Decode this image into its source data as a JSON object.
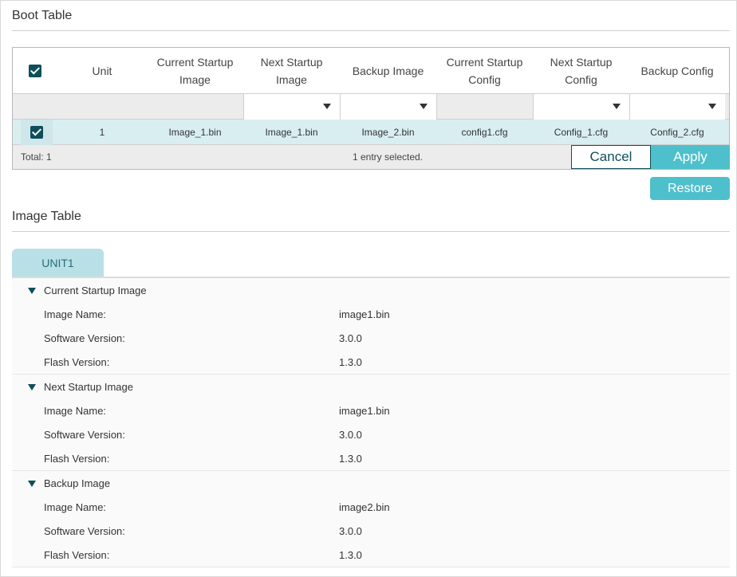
{
  "boot_table": {
    "title": "Boot Table",
    "headers": {
      "unit": "Unit",
      "current_startup_image": "Current Startup Image",
      "next_startup_image": "Next Startup Image",
      "backup_image": "Backup Image",
      "current_startup_config": "Current Startup Config",
      "next_startup_config": "Next Startup Config",
      "backup_config": "Backup Config"
    },
    "rows": [
      {
        "selected": true,
        "unit": "1",
        "current_startup_image": "Image_1.bin",
        "next_startup_image": "Image_1.bin",
        "backup_image": "Image_2.bin",
        "current_startup_config": "config1.cfg",
        "next_startup_config": "Config_1.cfg",
        "backup_config": "Config_2.cfg"
      }
    ],
    "footer": {
      "total": "Total: 1",
      "selection": "1 entry selected.",
      "cancel_label": "Cancel",
      "apply_label": "Apply"
    },
    "restore_label": "Restore"
  },
  "image_table": {
    "title": "Image Table",
    "tabs": [
      {
        "label": "UNIT1",
        "active": true
      }
    ],
    "groups": [
      {
        "title": "Current Startup Image",
        "fields": [
          {
            "label": "Image Name:",
            "value": "image1.bin"
          },
          {
            "label": "Software Version:",
            "value": "3.0.0"
          },
          {
            "label": "Flash Version:",
            "value": "1.3.0"
          }
        ]
      },
      {
        "title": "Next Startup Image",
        "fields": [
          {
            "label": "Image Name:",
            "value": "image1.bin"
          },
          {
            "label": "Software Version:",
            "value": "3.0.0"
          },
          {
            "label": "Flash Version:",
            "value": "1.3.0"
          }
        ]
      },
      {
        "title": "Backup Image",
        "fields": [
          {
            "label": "Image Name:",
            "value": "image2.bin"
          },
          {
            "label": "Software Version:",
            "value": "3.0.0"
          },
          {
            "label": "Flash Version:",
            "value": "1.3.0"
          }
        ]
      }
    ]
  },
  "icons": {
    "checkbox": "checkbox-checked-icon",
    "dropdown": "caret-down-icon",
    "expand": "triangle-down-icon"
  },
  "colors": {
    "accent": "#4ec0cc",
    "dark_teal": "#0d4f5b",
    "selected_row": "#d9eef1",
    "tab_bg": "#b8e0e6"
  }
}
